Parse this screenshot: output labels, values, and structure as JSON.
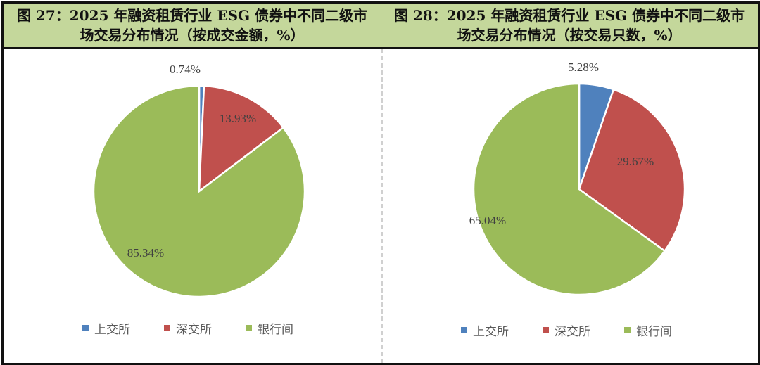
{
  "figures": [
    {
      "title_line1": "图 27：2025 年融资租赁行业 ESG 债券中不同二级市",
      "title_line2": "场交易分布情况（按成交金额，%）"
    },
    {
      "title_line1": "图 28：2025 年融资租赁行业 ESG 债券中不同二级市",
      "title_line2": "场交易分布情况（按交易只数，%）"
    }
  ],
  "legend": [
    {
      "label": "上交所",
      "color": "#4f81bd"
    },
    {
      "label": "深交所",
      "color": "#c0504d"
    },
    {
      "label": "银行间",
      "color": "#9bbb59"
    }
  ],
  "chart_data": [
    {
      "type": "pie",
      "title": "图 27：2025 年融资租赁行业 ESG 债券中不同二级市场交易分布情况（按成交金额，%）",
      "categories": [
        "上交所",
        "深交所",
        "银行间"
      ],
      "values": [
        0.74,
        13.93,
        85.34
      ],
      "labels": [
        "0.74%",
        "13.93%",
        "85.34%"
      ],
      "colors": [
        "#4f81bd",
        "#c0504d",
        "#9bbb59"
      ],
      "legend_position": "bottom",
      "start_angle": "12 o'clock, clockwise"
    },
    {
      "type": "pie",
      "title": "图 28：2025 年融资租赁行业 ESG 债券中不同二级市场交易分布情况（按交易只数，%）",
      "categories": [
        "上交所",
        "深交所",
        "银行间"
      ],
      "values": [
        5.28,
        29.67,
        65.04
      ],
      "labels": [
        "5.28%",
        "29.67%",
        "65.04%"
      ],
      "colors": [
        "#4f81bd",
        "#c0504d",
        "#9bbb59"
      ],
      "legend_position": "bottom",
      "start_angle": "12 o'clock, clockwise"
    }
  ]
}
